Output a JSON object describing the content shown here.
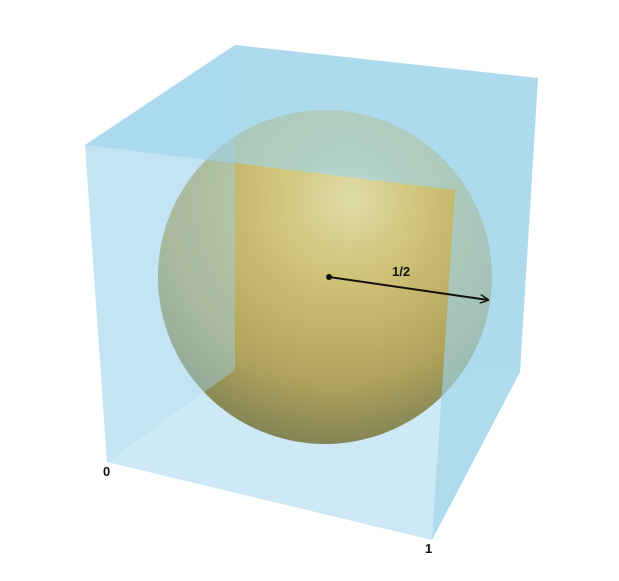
{
  "diagram": {
    "labels": {
      "radius": "1/2",
      "origin": "0",
      "unit": "1"
    },
    "colors": {
      "background": "#ffffff",
      "cube_face": "#9dd3ea",
      "sphere_highlight": "#fbe08a",
      "sphere_mid": "#d9ac2e",
      "sphere_shadow": "#5b4a10",
      "arrow": "#111111"
    }
  }
}
